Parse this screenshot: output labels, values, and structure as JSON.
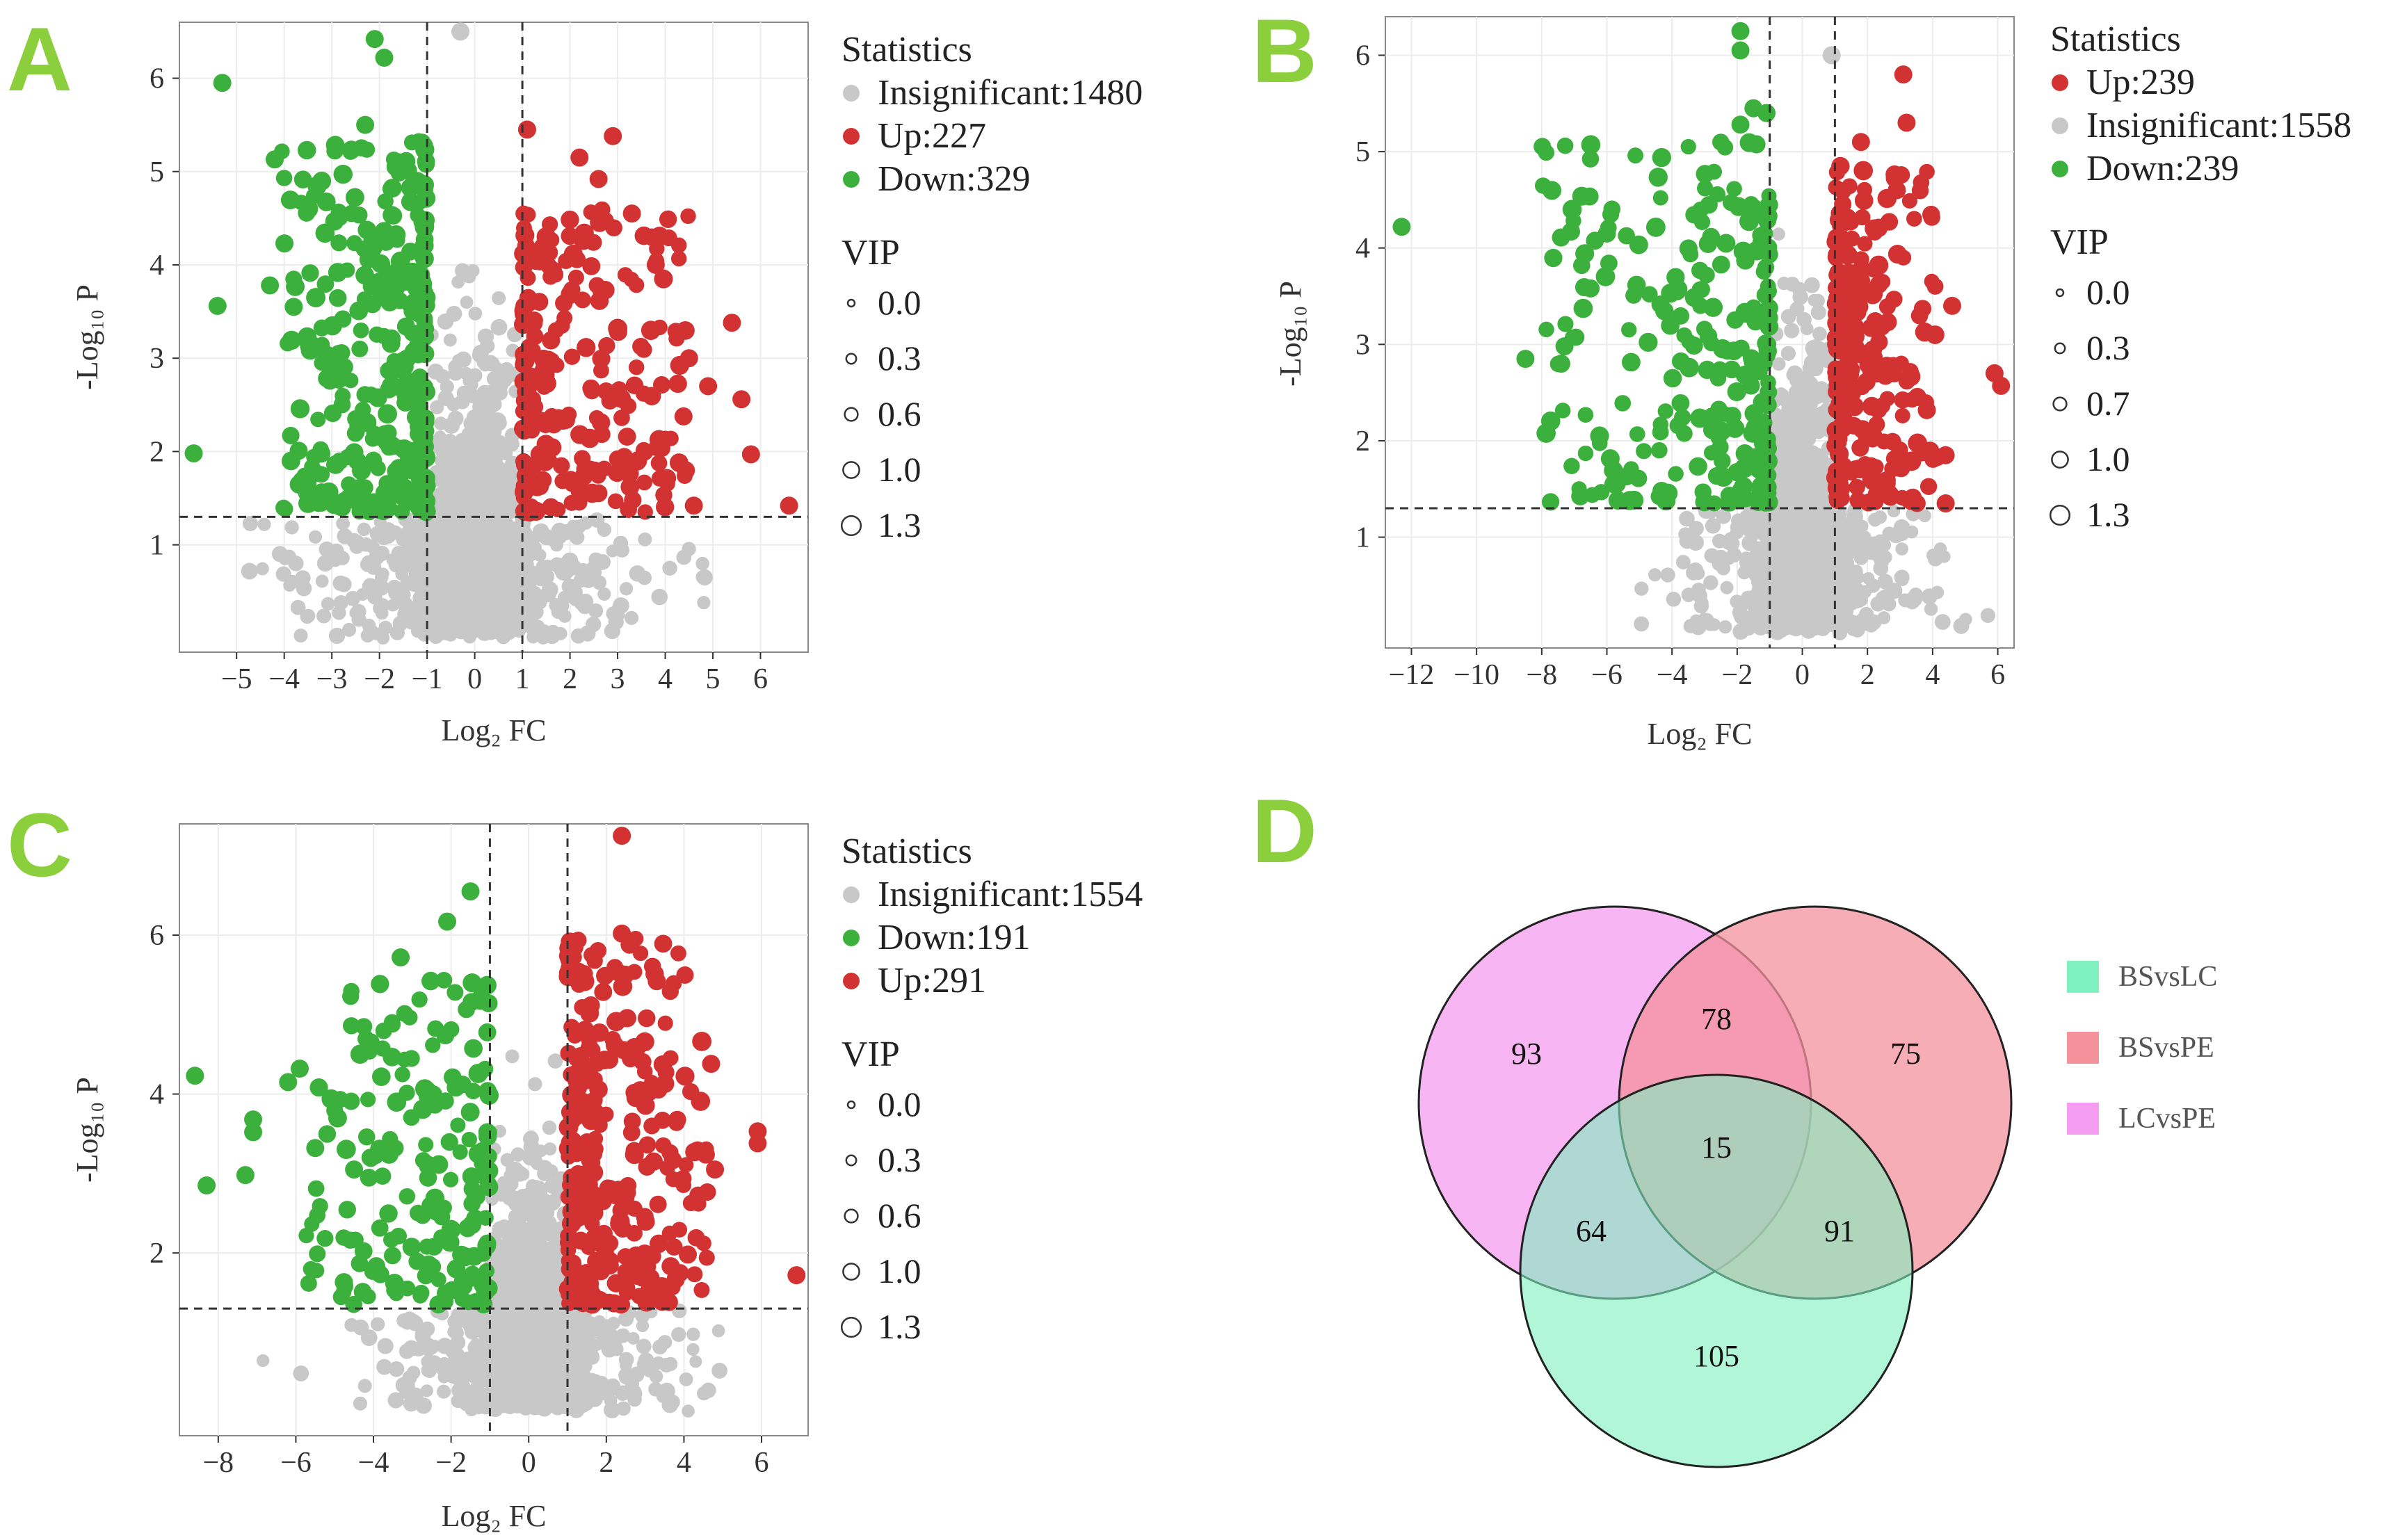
{
  "colors": {
    "insignificant": "#c8c8c8",
    "up": "#d23232",
    "down": "#3cb03c",
    "panel_label": "#8ccf3c",
    "set_BSvsLC": "#7ff0c0",
    "set_BSvsPE": "#f4929c",
    "set_LCvsPE": "#f49cf0"
  },
  "chart_data": [
    {
      "type": "scatter",
      "panel": "A",
      "xlabel": "Log₂ FC",
      "ylabel": "-Log₁₀ P",
      "xlim": [
        -6.2,
        7.0
      ],
      "ylim": [
        -0.15,
        6.6
      ],
      "xticks": [
        -5,
        -4,
        -3,
        -2,
        -1,
        0,
        1,
        2,
        3,
        4,
        5,
        6
      ],
      "yticks": [
        1,
        2,
        3,
        4,
        5,
        6
      ],
      "thresholds": {
        "fc": 1,
        "p": 1.3
      },
      "legend": {
        "stats_title": "Statistics",
        "entries": [
          {
            "label": "Insignificant:1480",
            "color": "#c8c8c8"
          },
          {
            "label": "Up:227",
            "color": "#d23232"
          },
          {
            "label": "Down:329",
            "color": "#3cb03c"
          }
        ],
        "vip_title": "VIP",
        "vip_values": [
          "0.0",
          "0.3",
          "0.6",
          "1.0",
          "1.3"
        ]
      },
      "series": [
        {
          "name": "Insignificant",
          "count": 1480
        },
        {
          "name": "Up",
          "count": 227,
          "x_range": [
            1,
            6.6
          ],
          "y_max": 5.5
        },
        {
          "name": "Down",
          "count": 329,
          "x_range": [
            -5.9,
            -1
          ],
          "y_max": 6.4
        }
      ],
      "highlight_points": [
        [
          -5.9,
          1.98
        ],
        [
          -5.3,
          5.95
        ],
        [
          -4.2,
          5.13
        ],
        [
          -2.1,
          6.42
        ],
        [
          -1.9,
          6.22
        ],
        [
          -5.4,
          3.56
        ],
        [
          -4.3,
          3.78
        ],
        [
          -3.8,
          3.55
        ],
        [
          -2.3,
          5.5
        ],
        [
          -1.6,
          5.1
        ],
        [
          -0.3,
          6.5
        ],
        [
          1.1,
          5.45
        ],
        [
          2.2,
          5.15
        ],
        [
          2.6,
          4.92
        ],
        [
          2.9,
          5.38
        ],
        [
          3.3,
          4.55
        ],
        [
          3.8,
          4.0
        ],
        [
          4.5,
          3.0
        ],
        [
          4.9,
          2.7
        ],
        [
          5.4,
          3.38
        ],
        [
          5.6,
          2.56
        ],
        [
          5.8,
          1.97
        ],
        [
          6.6,
          1.42
        ],
        [
          4.6,
          1.42
        ]
      ]
    },
    {
      "type": "scatter",
      "panel": "B",
      "xlabel": "Log₂ FC",
      "ylabel": "-Log₁₀ P",
      "xlim": [
        -12.8,
        6.5
      ],
      "ylim": [
        -0.15,
        6.4
      ],
      "xticks": [
        -12,
        -10,
        -8,
        -6,
        -4,
        -2,
        0,
        2,
        4,
        6
      ],
      "yticks": [
        1,
        2,
        3,
        4,
        5,
        6
      ],
      "thresholds": {
        "fc": 1,
        "p": 1.3
      },
      "legend": {
        "stats_title": "Statistics",
        "entries": [
          {
            "label": "Up:239",
            "color": "#d23232"
          },
          {
            "label": "Insignificant:1558",
            "color": "#c8c8c8"
          },
          {
            "label": "Down:239",
            "color": "#3cb03c"
          }
        ],
        "vip_title": "VIP",
        "vip_values": [
          "0.0",
          "0.3",
          "0.7",
          "1.0",
          "1.3"
        ]
      },
      "series": [
        {
          "name": "Up",
          "count": 239,
          "x_range": [
            1,
            6.1
          ],
          "y_max": 5.8
        },
        {
          "name": "Insignificant",
          "count": 1558
        },
        {
          "name": "Down",
          "count": 239,
          "x_range": [
            -12.3,
            -1
          ],
          "y_max": 6.25
        }
      ],
      "highlight_points": [
        [
          -12.3,
          4.22
        ],
        [
          -8.5,
          2.85
        ],
        [
          -7.3,
          2.98
        ],
        [
          -7.4,
          2.8
        ],
        [
          -7.1,
          4.17
        ],
        [
          -6.5,
          3.58
        ],
        [
          -6.0,
          4.15
        ],
        [
          -5.8,
          1.55
        ],
        [
          -5.4,
          1.63
        ],
        [
          -1.9,
          6.25
        ],
        [
          -1.9,
          6.05
        ],
        [
          -1.5,
          5.45
        ],
        [
          -1.9,
          5.28
        ],
        [
          0.9,
          6.0
        ],
        [
          3.1,
          5.8
        ],
        [
          3.2,
          5.3
        ],
        [
          2.9,
          4.6
        ],
        [
          4.6,
          3.4
        ],
        [
          5.9,
          2.7
        ],
        [
          6.1,
          2.57
        ],
        [
          4.4,
          1.85
        ],
        [
          4.4,
          1.35
        ],
        [
          -1.1,
          5.4
        ],
        [
          1.8,
          5.1
        ]
      ]
    },
    {
      "type": "scatter",
      "panel": "C",
      "xlabel": "Log₂ FC",
      "ylabel": "-Log₁₀ P",
      "xlim": [
        -9.0,
        7.2
      ],
      "ylim": [
        -0.3,
        7.4
      ],
      "xticks": [
        -8,
        -6,
        -4,
        -2,
        0,
        2,
        4,
        6
      ],
      "yticks": [
        2,
        4,
        6
      ],
      "thresholds": {
        "fc": 1,
        "p": 1.3
      },
      "legend": {
        "stats_title": "Statistics",
        "entries": [
          {
            "label": "Insignificant:1554",
            "color": "#c8c8c8"
          },
          {
            "label": "Down:191",
            "color": "#3cb03c"
          },
          {
            "label": "Up:291",
            "color": "#d23232"
          }
        ],
        "vip_title": "VIP",
        "vip_values": [
          "0.0",
          "0.3",
          "0.6",
          "1.0",
          "1.3"
        ]
      },
      "series": [
        {
          "name": "Insignificant",
          "count": 1554
        },
        {
          "name": "Down",
          "count": 191,
          "x_range": [
            -8.6,
            -1
          ],
          "y_max": 6.55
        },
        {
          "name": "Up",
          "count": 291,
          "x_range": [
            1,
            6.9
          ],
          "y_max": 7.25
        }
      ],
      "highlight_points": [
        [
          -8.6,
          4.23
        ],
        [
          -8.3,
          2.85
        ],
        [
          -7.3,
          2.98
        ],
        [
          -7.1,
          3.68
        ],
        [
          -7.1,
          3.52
        ],
        [
          -6.2,
          4.15
        ],
        [
          -5.9,
          4.32
        ],
        [
          -5.5,
          3.32
        ],
        [
          -3.3,
          5.72
        ],
        [
          -2.1,
          6.17
        ],
        [
          -1.5,
          6.55
        ],
        [
          2.4,
          7.25
        ],
        [
          2.4,
          6.02
        ],
        [
          2.6,
          5.88
        ],
        [
          3.3,
          5.42
        ],
        [
          4.7,
          4.38
        ],
        [
          5.9,
          3.53
        ],
        [
          5.9,
          3.38
        ],
        [
          6.9,
          1.72
        ],
        [
          4.1,
          1.98
        ],
        [
          4.8,
          3.05
        ],
        [
          -4.5,
          3.05
        ]
      ]
    },
    {
      "type": "venn",
      "panel": "D",
      "sets": [
        "BSvsLC",
        "BSvsPE",
        "LCvsPE"
      ],
      "regions": {
        "LCvsPE_only": "93",
        "BSvsPE_only": "75",
        "BSvsLC_only": "105",
        "LCvsPE_BSvsPE": "78",
        "LCvsPE_BSvsLC": "64",
        "BSvsPE_BSvsLC": "91",
        "all": "15"
      },
      "legend": [
        "BSvsLC",
        "BSvsPE",
        "LCvsPE"
      ]
    }
  ],
  "panel_labels": [
    "A",
    "B",
    "C",
    "D"
  ]
}
